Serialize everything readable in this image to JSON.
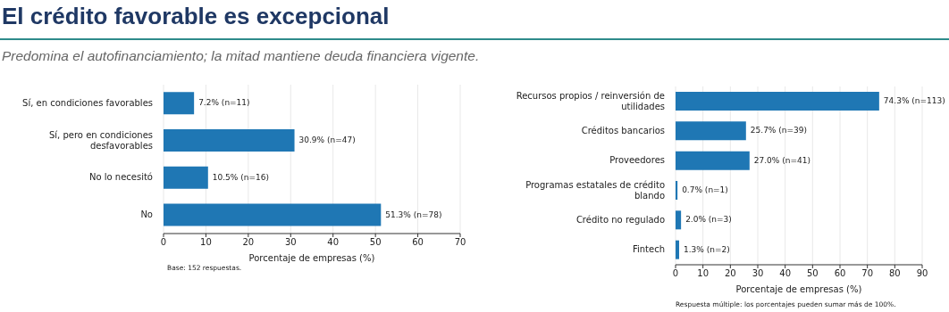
{
  "chart_data": [
    {
      "type": "bar",
      "orientation": "horizontal",
      "title": "El crédito favorable es excepcional",
      "subtitle": "Predomina el autofinanciamiento; la mitad mantiene deuda financiera vigente.",
      "categories": [
        "Sí, en condiciones favorables",
        "Sí, pero en condiciones desfavorables",
        "No lo necesitó",
        "No"
      ],
      "values": [
        7.2,
        30.9,
        10.5,
        51.3
      ],
      "color": "#1f77b4",
      "value_labels": [
        "7.2%  (n=11)",
        "30.9%  (n=47)",
        "10.5%  (n=16)",
        "51.3%  (n=78)"
      ],
      "xlabel": "Porcentaje de empresas (%)",
      "xlim": [
        0,
        70
      ],
      "xticks": [
        0,
        10,
        20,
        30,
        40,
        50,
        60,
        70
      ],
      "grid": "x",
      "annotations": [
        "Base: 152 respuestas."
      ]
    },
    {
      "type": "bar",
      "orientation": "horizontal",
      "categories": [
        "Recursos propios / reinversión de utilidades",
        "Créditos bancarios",
        "Proveedores",
        "Programas estatales de crédito blando",
        "Crédito no regulado",
        "Fintech"
      ],
      "values": [
        74.3,
        25.7,
        27.0,
        0.7,
        2.0,
        1.3
      ],
      "color": "#1f77b4",
      "value_labels": [
        "74.3%  (n=113)",
        "25.7%  (n=39)",
        "27.0%  (n=41)",
        "0.7%  (n=1)",
        "2.0%  (n=3)",
        "1.3%  (n=2)"
      ],
      "xlabel": "Porcentaje de empresas (%)",
      "xlim": [
        0,
        90
      ],
      "xticks": [
        0,
        10,
        20,
        30,
        40,
        50,
        60,
        70,
        80,
        90
      ],
      "grid": "x",
      "annotations": [
        "Respuesta múltiple: los porcentajes pueden sumar más de 100%."
      ]
    }
  ]
}
